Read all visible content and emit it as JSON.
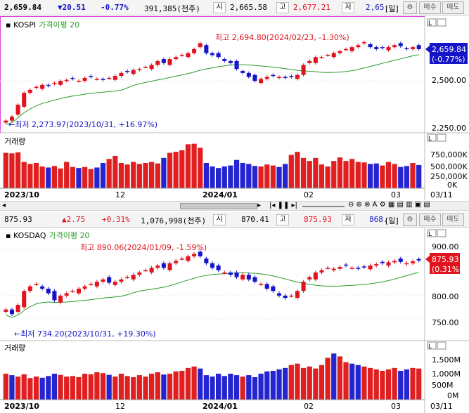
{
  "header1": {
    "price": "2,659.84",
    "change": "▼20.51",
    "change_pct": "-0.77%",
    "volume": "391,385(천주)",
    "open_label": "시",
    "open_value": "2,665.58",
    "high_label": "고",
    "high_value": "2,677.21",
    "low_label": "저",
    "low_value": "2,65",
    "period_label": "[일]",
    "buy_label": "매수",
    "sell_label": "매도"
  },
  "header2": {
    "price": "875.93",
    "change": "▲2.75",
    "change_pct": "+0.31%",
    "volume": "1,076,998(천주)",
    "open_label": "시",
    "open_value": "870.41",
    "high_label": "고",
    "high_value": "875.93",
    "low_label": "저",
    "low_value": "868.",
    "period_label": "[일]",
    "buy_label": "매수",
    "sell_label": "매도"
  },
  "panel_kospi": {
    "name": "KOSPI",
    "indicator": "가격이평 20",
    "price_box": "2,659.84",
    "pct_box": "(-0.77%)",
    "y_ticks": [
      "2,500.00",
      "2,250.00"
    ],
    "high_note": "최고 2,694.80(2024/02/23, -1.30%)",
    "low_note": "←최저 2,273.97(2023/10/31, +16.97%)",
    "volume_label": "거래량",
    "vol_ticks": [
      "750,000K",
      "500,000K",
      "250,000K",
      "0K"
    ],
    "x_labels": [
      "2023/10",
      "12",
      "2024/01",
      "02",
      "03",
      "03/11"
    ]
  },
  "panel_kosdaq": {
    "name": "KOSDAQ",
    "indicator": "가격이평 20",
    "price_box": "875.93",
    "pct_box": "(0.31%)",
    "y_ticks": [
      "900.00",
      "800.00",
      "750.00"
    ],
    "high_note": "최고 890.06(2024/01/09, -1.59%)",
    "low_note": "←최저 734.20(2023/10/31, +19.30%)",
    "volume_label": "거래량",
    "vol_ticks": [
      "1,500M",
      "1,000M",
      "500M",
      "0M"
    ],
    "x_labels": [
      "2023/10",
      "12",
      "2024/01",
      "02",
      "03",
      "03/11"
    ]
  },
  "colors": {
    "up": "#e0141e",
    "down": "#1414c8",
    "ma": "#2a9a2a",
    "vol_up": "#e02020",
    "vol_down": "#2424d0"
  },
  "series": {
    "kospi_close": [
      2300,
      2320,
      2380,
      2440,
      2455,
      2470,
      2480,
      2475,
      2490,
      2500,
      2505,
      2510,
      2500,
      2515,
      2520,
      2510,
      2505,
      2515,
      2525,
      2540,
      2545,
      2555,
      2560,
      2570,
      2580,
      2600,
      2590,
      2610,
      2620,
      2630,
      2640,
      2660,
      2690,
      2640,
      2630,
      2620,
      2600,
      2590,
      2560,
      2540,
      2520,
      2500,
      2510,
      2520,
      2525,
      2520,
      2515,
      2520,
      2530,
      2580,
      2600,
      2620,
      2620,
      2630,
      2640,
      2650,
      2660,
      2670,
      2680,
      2695,
      2670,
      2660,
      2665,
      2670,
      2680,
      2675,
      2660,
      2670,
      2660
    ],
    "kospi_vol": [
      700,
      690,
      710,
      520,
      480,
      500,
      430,
      410,
      440,
      390,
      520,
      420,
      400,
      420,
      380,
      410,
      500,
      580,
      640,
      500,
      470,
      520,
      480,
      500,
      520,
      490,
      600,
      700,
      720,
      750,
      870,
      880,
      800,
      500,
      430,
      400,
      430,
      450,
      560,
      500,
      480,
      440,
      430,
      470,
      450,
      420,
      480,
      660,
      720,
      600,
      540,
      600,
      470,
      430,
      540,
      610,
      540,
      580,
      520,
      510,
      480,
      490,
      450,
      520,
      480,
      420,
      440,
      500,
      460
    ],
    "kosdaq_close": [
      770,
      760,
      780,
      810,
      820,
      825,
      815,
      805,
      790,
      800,
      805,
      810,
      815,
      820,
      825,
      830,
      835,
      828,
      830,
      835,
      840,
      845,
      850,
      855,
      860,
      865,
      860,
      870,
      875,
      880,
      885,
      890,
      885,
      870,
      860,
      855,
      850,
      845,
      840,
      845,
      835,
      830,
      825,
      815,
      810,
      800,
      795,
      800,
      810,
      830,
      840,
      850,
      855,
      860,
      858,
      862,
      865,
      860,
      858,
      862,
      865,
      868,
      870,
      872,
      875,
      873,
      870,
      874,
      876
    ],
    "kosdaq_vol": [
      900,
      850,
      800,
      880,
      750,
      800,
      760,
      820,
      900,
      860,
      800,
      820,
      780,
      900,
      880,
      950,
      920,
      860,
      800,
      900,
      820,
      780,
      850,
      800,
      900,
      950,
      870,
      900,
      980,
      1000,
      1100,
      1150,
      1080,
      850,
      800,
      900,
      820,
      900,
      850,
      800,
      850,
      780,
      900,
      980,
      1000,
      1050,
      1100,
      1200,
      1250,
      1100,
      1150,
      1080,
      1200,
      1450,
      1600,
      1500,
      1300,
      1250,
      1200,
      1150,
      1100,
      1050,
      1000,
      1050,
      1100,
      1000,
      1050,
      1100,
      1080
    ]
  }
}
